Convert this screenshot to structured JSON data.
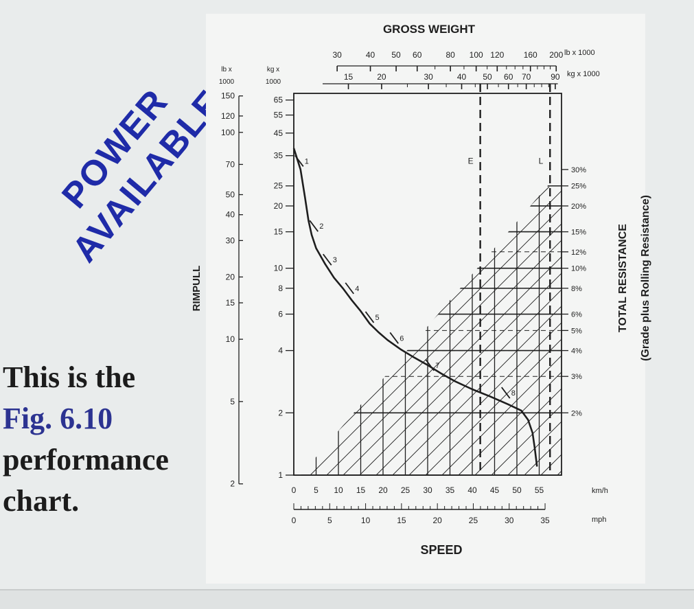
{
  "slide": {
    "power_available_line1": "POWER",
    "power_available_line2": "AVAILABLE",
    "caption_line1": "This is the",
    "caption_line2": "Fig. 6.10",
    "caption_line3": "performance",
    "caption_line4": "chart.",
    "colors": {
      "title_blue": "#1f2ba8",
      "caption_blue": "#2c3391",
      "ink": "#1e1e1e"
    }
  },
  "chart_data": {
    "type": "line",
    "title": "GROSS WEIGHT",
    "xlabel": "SPEED",
    "ylabel": "RIMPULL",
    "right_label_line1": "TOTAL RESISTANCE",
    "right_label_line2": "(Grade plus Rolling Resistance)",
    "y_scale": "log",
    "x_unit_kmh": "km/h",
    "x_unit_mph": "mph",
    "x_kmh_ticks": [
      "0",
      "5",
      "10",
      "15",
      "20",
      "25",
      "30",
      "35",
      "40",
      "45",
      "50",
      "55"
    ],
    "x_mph_ticks": [
      "0",
      "5",
      "10",
      "15",
      "20",
      "25",
      "30",
      "35"
    ],
    "x_range_kmh": [
      0,
      60
    ],
    "y_range_kg1000": [
      1,
      70
    ],
    "y_lb_header_line1": "lb x",
    "y_lb_header_line2": "1000",
    "y_kg_header_line1": "kg x",
    "y_kg_header_line2": "1000",
    "y_lb_ticks": [
      {
        "label": "150",
        "lb": 150
      },
      {
        "label": "120",
        "lb": 120
      },
      {
        "label": "100",
        "lb": 100
      },
      {
        "label": "70",
        "lb": 70
      },
      {
        "label": "50",
        "lb": 50
      },
      {
        "label": "40",
        "lb": 40
      },
      {
        "label": "30",
        "lb": 30
      },
      {
        "label": "20",
        "lb": 20
      },
      {
        "label": "15",
        "lb": 15
      },
      {
        "label": "10",
        "lb": 10
      },
      {
        "label": "5",
        "lb": 5
      },
      {
        "label": "2",
        "lb": 2
      }
    ],
    "y_kg_ticks": [
      {
        "label": "65",
        "kg": 65
      },
      {
        "label": "55",
        "kg": 55
      },
      {
        "label": "45",
        "kg": 45
      },
      {
        "label": "35",
        "kg": 35
      },
      {
        "label": "25",
        "kg": 25
      },
      {
        "label": "20",
        "kg": 20
      },
      {
        "label": "15",
        "kg": 15
      },
      {
        "label": "10",
        "kg": 10
      },
      {
        "label": "8",
        "kg": 8
      },
      {
        "label": "6",
        "kg": 6
      },
      {
        "label": "4",
        "kg": 4
      },
      {
        "label": "2",
        "kg": 2
      },
      {
        "label": "1",
        "kg": 1
      }
    ],
    "gross_weight_lb_unit": "lb x 1000",
    "gross_weight_kg_unit": "kg x 1000",
    "gross_weight_lb_ticks": [
      "30",
      "40",
      "50",
      "60",
      "80",
      "100",
      "120",
      "160",
      "200"
    ],
    "gross_weight_kg_ticks": [
      "15",
      "20",
      "30",
      "40",
      "50",
      "60",
      "70",
      "90"
    ],
    "resistance_ticks": [
      {
        "label": "30%",
        "kg": 30
      },
      {
        "label": "25%",
        "kg": 25
      },
      {
        "label": "20%",
        "kg": 20
      },
      {
        "label": "15%",
        "kg": 15
      },
      {
        "label": "12%",
        "kg": 12
      },
      {
        "label": "10%",
        "kg": 10
      },
      {
        "label": "8%",
        "kg": 8
      },
      {
        "label": "6%",
        "kg": 6
      },
      {
        "label": "5%",
        "kg": 5
      },
      {
        "label": "4%",
        "kg": 4
      },
      {
        "label": "3%",
        "kg": 3
      },
      {
        "label": "2%",
        "kg": 2
      }
    ],
    "weight_markers": [
      {
        "label": "E",
        "kg1000": 47
      },
      {
        "label": "L",
        "kg1000": 86
      }
    ],
    "series": [
      {
        "kind": "rimpull_curve",
        "points": [
          [
            0,
            38
          ],
          [
            1.5,
            30
          ],
          [
            2.5,
            22
          ],
          [
            3.3,
            17
          ],
          [
            4.0,
            14.5
          ],
          [
            5,
            12.5
          ],
          [
            7,
            10.5
          ],
          [
            9,
            9
          ],
          [
            11,
            8
          ],
          [
            13,
            7
          ],
          [
            15,
            6.2
          ],
          [
            17,
            5.4
          ],
          [
            19,
            4.9
          ],
          [
            21,
            4.5
          ],
          [
            24,
            4.05
          ],
          [
            27,
            3.7
          ],
          [
            30,
            3.4
          ],
          [
            33,
            3.1
          ],
          [
            36,
            2.85
          ],
          [
            40,
            2.6
          ],
          [
            44,
            2.4
          ],
          [
            48,
            2.2
          ],
          [
            51,
            2.05
          ],
          [
            52.5,
            1.85
          ],
          [
            53.5,
            1.6
          ],
          [
            54,
            1.35
          ],
          [
            54.5,
            1.1
          ]
        ]
      }
    ],
    "gears": [
      {
        "label": "1",
        "kmh": 1.2,
        "kg": 33
      },
      {
        "label": "2",
        "kmh": 4.5,
        "kg": 16
      },
      {
        "label": "3",
        "kmh": 7.5,
        "kg": 11
      },
      {
        "label": "4",
        "kmh": 12.5,
        "kg": 8
      },
      {
        "label": "5",
        "kmh": 17,
        "kg": 5.8
      },
      {
        "label": "6",
        "kmh": 22.5,
        "kg": 4.6
      },
      {
        "label": "7",
        "kmh": 30.5,
        "kg": 3.4
      },
      {
        "label": "8",
        "kmh": 47.5,
        "kg": 2.5
      }
    ],
    "grid": true
  }
}
